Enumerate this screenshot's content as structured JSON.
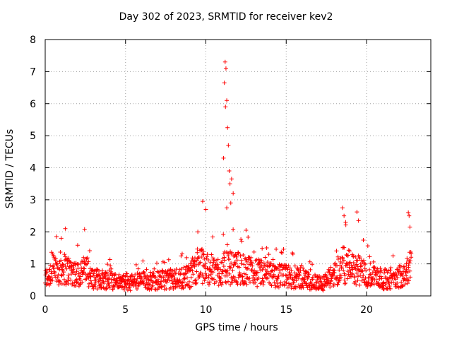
{
  "chart_data": {
    "type": "scatter",
    "title": "Day 302 of 2023, SRMTID for receiver kev2",
    "xlabel": "GPS time / hours",
    "ylabel": "SRMTID / TECUs",
    "xlim": [
      0,
      24
    ],
    "ylim": [
      0,
      8
    ],
    "xticks": [
      0,
      5,
      10,
      15,
      20
    ],
    "yticks": [
      0,
      1,
      2,
      3,
      4,
      5,
      6,
      7,
      8
    ],
    "grid": true,
    "marker": "+",
    "color": "#ff0000",
    "series": [
      {
        "name": "SRMTID",
        "profile_x": [
          0,
          0.5,
          1,
          1.5,
          2,
          2.5,
          3,
          3.5,
          4,
          4.5,
          5,
          5.5,
          6,
          6.5,
          7,
          7.5,
          8,
          8.5,
          9,
          9.3,
          9.6,
          10,
          10.5,
          11,
          11.2,
          11.5,
          12,
          12.5,
          13,
          14,
          15,
          16,
          17,
          17.5,
          18,
          18.5,
          19,
          19.5,
          20,
          20.5,
          21,
          21.5,
          22,
          22.5,
          22.8
        ],
        "profile_y": [
          0.6,
          0.9,
          1.0,
          0.9,
          0.8,
          0.9,
          0.6,
          0.6,
          0.6,
          0.5,
          0.45,
          0.5,
          0.55,
          0.55,
          0.55,
          0.6,
          0.6,
          0.65,
          0.7,
          1.0,
          1.1,
          1.0,
          0.9,
          0.9,
          1.0,
          1.0,
          1.0,
          0.9,
          0.85,
          0.75,
          0.7,
          0.6,
          0.45,
          0.5,
          0.8,
          1.1,
          1.0,
          0.9,
          0.8,
          0.7,
          0.6,
          0.6,
          0.7,
          0.9,
          1.1
        ],
        "spikes": [
          {
            "x": 0.7,
            "y": 1.85
          },
          {
            "x": 1.25,
            "y": 2.1
          },
          {
            "x": 2.45,
            "y": 2.08
          },
          {
            "x": 9.8,
            "y": 2.95
          },
          {
            "x": 10.0,
            "y": 2.7
          },
          {
            "x": 11.1,
            "y": 4.3
          },
          {
            "x": 11.15,
            "y": 6.65
          },
          {
            "x": 11.2,
            "y": 7.3
          },
          {
            "x": 11.22,
            "y": 5.9
          },
          {
            "x": 11.25,
            "y": 7.1
          },
          {
            "x": 11.3,
            "y": 6.1
          },
          {
            "x": 11.35,
            "y": 5.25
          },
          {
            "x": 11.4,
            "y": 4.7
          },
          {
            "x": 11.45,
            "y": 3.9
          },
          {
            "x": 11.5,
            "y": 3.5
          },
          {
            "x": 11.6,
            "y": 3.65
          },
          {
            "x": 11.7,
            "y": 3.2
          },
          {
            "x": 11.3,
            "y": 2.75
          },
          {
            "x": 11.55,
            "y": 2.9
          },
          {
            "x": 12.5,
            "y": 2.05
          },
          {
            "x": 18.5,
            "y": 2.75
          },
          {
            "x": 18.6,
            "y": 2.5
          },
          {
            "x": 19.4,
            "y": 2.62
          },
          {
            "x": 19.5,
            "y": 2.35
          },
          {
            "x": 22.6,
            "y": 2.6
          },
          {
            "x": 22.65,
            "y": 2.5
          },
          {
            "x": 22.7,
            "y": 2.15
          },
          {
            "x": 9.5,
            "y": 2.0
          },
          {
            "x": 18.7,
            "y": 2.3
          },
          {
            "x": 1.0,
            "y": 1.8
          }
        ]
      }
    ]
  }
}
